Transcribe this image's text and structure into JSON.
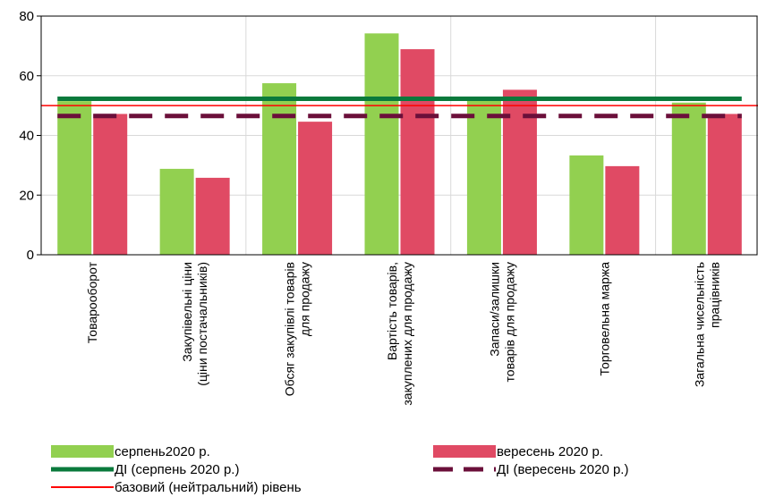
{
  "chart_data": {
    "type": "bar",
    "categories": [
      [
        "Товарооборот"
      ],
      [
        "Закупівельні ціни",
        "(ціни постачальників)"
      ],
      [
        "Обсяг закупівлі товарів",
        "для продажу"
      ],
      [
        "Вартість товарів,",
        "закуплених для продажу"
      ],
      [
        "Запаси/залишки",
        "товарів для продажу"
      ],
      [
        "Торговельна маржа"
      ],
      [
        "Загальна чисельність",
        "працівників"
      ]
    ],
    "series": [
      {
        "name": "серпень2020 р.",
        "color": "#92d050",
        "values": [
          51.5,
          28.8,
          57.5,
          74.2,
          52.5,
          33.3,
          51.0
        ]
      },
      {
        "name": "вересень 2020 р.",
        "color": "#e04a64",
        "values": [
          47.2,
          25.8,
          44.6,
          68.9,
          55.3,
          29.7,
          47.2
        ]
      }
    ],
    "lines": [
      {
        "name": "ДІ (серпень 2020 р.)",
        "value": 52.3,
        "color": "#0a7a3c",
        "style": "solid"
      },
      {
        "name": "ДІ (вересень 2020 р.)",
        "value": 46.5,
        "color": "#6b0f3a",
        "style": "dashed"
      },
      {
        "name": "базовий (нейтральний) рівень",
        "value": 50,
        "color": "#ff0000",
        "style": "thin"
      }
    ],
    "ylim": [
      0,
      80
    ],
    "yticks": [
      0,
      20,
      40,
      60,
      80
    ],
    "grid": true,
    "legend_position": "bottom"
  }
}
